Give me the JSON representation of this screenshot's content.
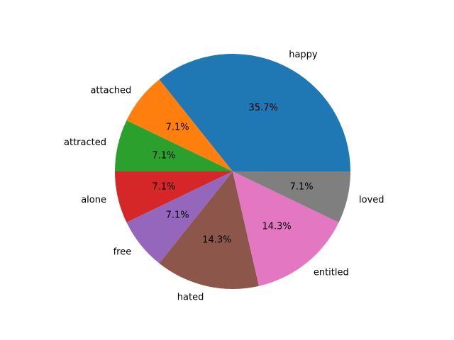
{
  "chart_data": {
    "type": "pie",
    "title": "",
    "categories": [
      "happy",
      "attached",
      "attracted",
      "alone",
      "free",
      "hated",
      "entitled",
      "loved"
    ],
    "values": [
      5,
      1,
      1,
      1,
      1,
      2,
      2,
      1
    ],
    "percent_labels": [
      "35.7%",
      "7.1%",
      "7.1%",
      "7.1%",
      "7.1%",
      "14.3%",
      "14.3%",
      "7.1%"
    ],
    "colors": [
      "#1f77b4",
      "#ff7f0e",
      "#2ca02c",
      "#d62728",
      "#9467bd",
      "#8c564b",
      "#e377c2",
      "#7f7f7f"
    ],
    "start_angle_deg": 0,
    "direction": "counterclockwise",
    "legend": "none"
  }
}
